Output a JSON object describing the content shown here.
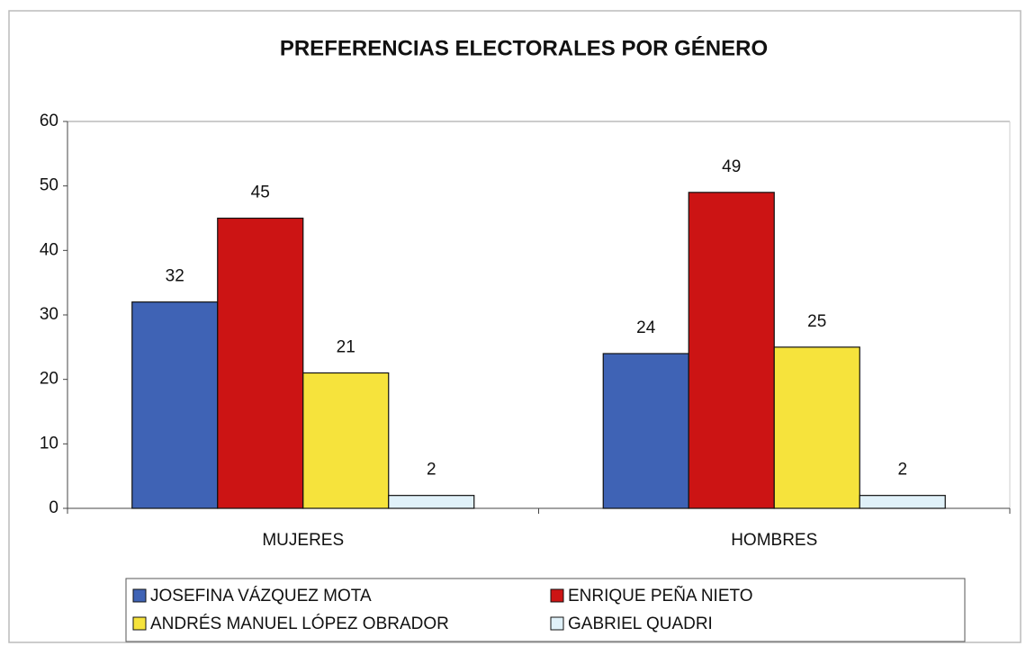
{
  "chart_data": {
    "type": "bar",
    "title": "PREFERENCIAS ELECTORALES POR GÉNERO",
    "categories": [
      "MUJERES",
      "HOMBRES"
    ],
    "series": [
      {
        "name": "JOSEFINA VÁZQUEZ MOTA",
        "color": "#3f63b5",
        "values": [
          32,
          24
        ]
      },
      {
        "name": "ENRIQUE PEÑA NIETO",
        "color": "#cc1414",
        "values": [
          45,
          49
        ]
      },
      {
        "name": "ANDRÉS MANUEL LÓPEZ OBRADOR",
        "color": "#f6e33c",
        "values": [
          21,
          25
        ]
      },
      {
        "name": "GABRIEL QUADRI",
        "color": "#e0f1f9",
        "values": [
          2,
          2
        ]
      }
    ],
    "ylim": [
      0,
      60
    ],
    "yticks": [
      0,
      10,
      20,
      30,
      40,
      50,
      60
    ],
    "grid": false,
    "legend": "bottom"
  }
}
